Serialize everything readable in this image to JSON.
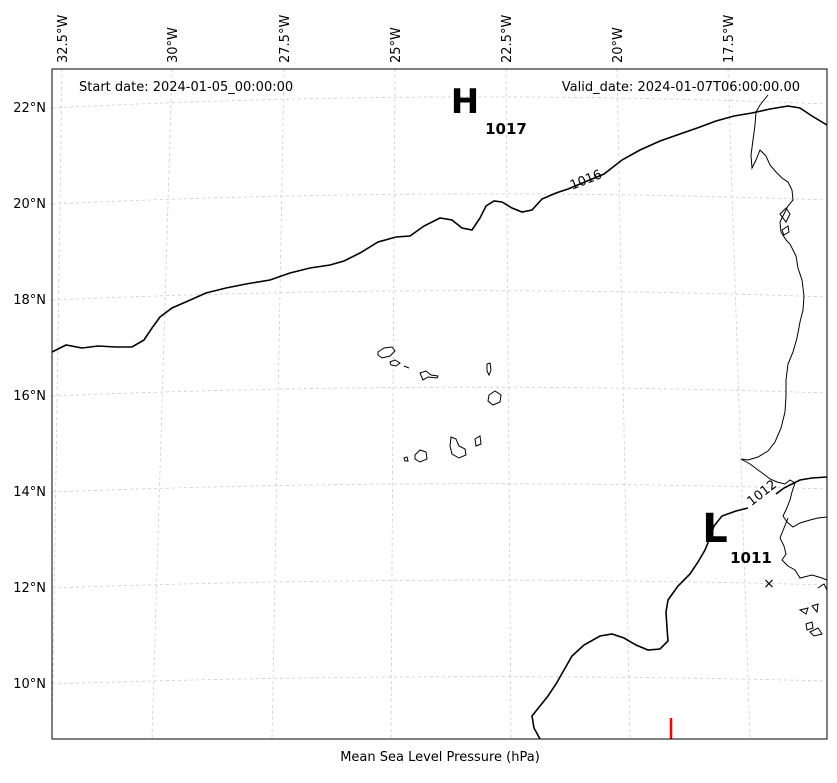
{
  "map": {
    "start_date_label": "Start date: 2024-01-05_00:00:00",
    "valid_date_label": "Valid_date: 2024-01-07T06:00:00.00",
    "caption": "Mean Sea Level Pressure (hPa)",
    "longitude_labels": [
      "32.5°W",
      "30°W",
      "27.5°W",
      "25°W",
      "22.5°W",
      "20°W",
      "17.5°W"
    ],
    "latitude_labels": [
      "22°N",
      "20°N",
      "18°N",
      "16°N",
      "14°N",
      "12°N",
      "10°N"
    ],
    "pressure_centers": [
      {
        "type": "high",
        "symbol": "H",
        "value": "1017"
      },
      {
        "type": "low",
        "symbol": "L",
        "value": "1011"
      }
    ],
    "isobar_labels": [
      "1016",
      "1012"
    ],
    "colors": {
      "isobar": "#000000",
      "gridline": "#cccccc",
      "frame": "#000000",
      "marker": "#ff0000"
    }
  }
}
